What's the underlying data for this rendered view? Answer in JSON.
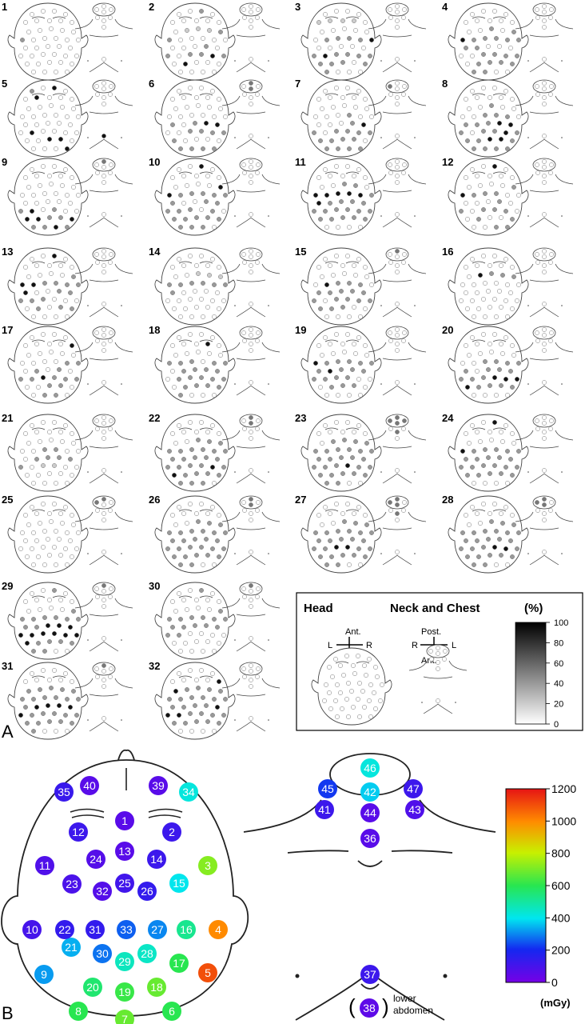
{
  "panel_a": {
    "label": "A",
    "patients": [
      {
        "n": "1",
        "dark": [
          42
        ],
        "mid": [
          15
        ],
        "light": [],
        "neck": [],
        "chest": []
      },
      {
        "n": "2",
        "dark": [
          42,
          30,
          33
        ],
        "mid": [
          3,
          14,
          15,
          29,
          28,
          24,
          26,
          31
        ],
        "light": [
          11,
          12,
          13
        ],
        "neck": [],
        "chest": []
      },
      {
        "n": "3",
        "dark": [
          27,
          20
        ],
        "mid": [
          26,
          28,
          29,
          30,
          31,
          32,
          33,
          34,
          16,
          17,
          18,
          19,
          41,
          36,
          37
        ],
        "light": [
          5,
          6,
          7,
          8
        ],
        "neck": [],
        "chest": []
      },
      {
        "n": "4",
        "dark": [
          15,
          42
        ],
        "mid": [
          12,
          14,
          16,
          17,
          18,
          19,
          20,
          21,
          22,
          28,
          29,
          30,
          31,
          33,
          34,
          35,
          36,
          37,
          38
        ],
        "light": [],
        "neck": [],
        "chest": []
      },
      {
        "n": "5",
        "dark": [
          3,
          6,
          27,
          34,
          40,
          35
        ],
        "mid": [
          1
        ],
        "light": [],
        "neck": [],
        "chest": [
          "c37"
        ]
      },
      {
        "n": "6",
        "dark": [
          24,
          25
        ],
        "mid": [
          21,
          23,
          28,
          29,
          30,
          31,
          32,
          37,
          38,
          39,
          40
        ],
        "light": [],
        "neck": [
          "n46",
          "n42"
        ],
        "chest": []
      },
      {
        "n": "7",
        "dark": [
          41,
          25
        ],
        "mid": [
          18,
          24,
          26,
          28,
          29,
          30,
          31,
          32,
          33,
          34,
          35,
          37,
          38,
          39,
          40
        ],
        "light": [],
        "neck": [
          "n45"
        ],
        "chest": []
      },
      {
        "n": "8",
        "dark": [
          24,
          25,
          30,
          34,
          35
        ],
        "mid": [
          12,
          17,
          18,
          19,
          21,
          22,
          23,
          26,
          28,
          29,
          31,
          32,
          33,
          36,
          37,
          38,
          39,
          40
        ],
        "light": [],
        "neck": [],
        "chest": []
      },
      {
        "n": "9",
        "dark": [
          27,
          32,
          33,
          36,
          39
        ],
        "mid": [
          29,
          34,
          35,
          37,
          38,
          40,
          42,
          26
        ],
        "light": [],
        "neck": [
          "n46"
        ],
        "chest": []
      },
      {
        "n": "10",
        "dark": [
          3,
          14,
          15
        ],
        "mid": [
          16,
          17,
          18,
          19,
          20,
          21,
          24,
          25,
          26,
          27,
          28,
          30,
          32,
          33,
          34,
          35,
          36,
          37,
          38,
          39
        ],
        "light": [],
        "neck": [],
        "chest": []
      },
      {
        "n": "11",
        "dark": [
          15,
          16,
          17,
          18,
          19,
          21
        ],
        "mid": [
          12,
          13,
          20,
          22,
          23,
          24,
          25,
          26,
          27,
          28,
          29,
          30,
          31,
          32,
          33,
          34,
          35,
          36
        ],
        "light": [],
        "neck": [],
        "chest": []
      },
      {
        "n": "12",
        "dark": [
          3,
          15
        ],
        "mid": [
          14,
          16,
          17,
          18,
          24,
          26,
          28,
          29,
          30,
          33,
          36,
          39,
          40
        ],
        "light": [],
        "neck": [],
        "chest": []
      },
      {
        "n": "13",
        "dark": [
          3,
          15,
          16,
          21
        ],
        "mid": [
          14,
          17,
          18,
          19,
          20,
          24,
          25,
          26,
          27,
          28,
          33,
          35,
          36
        ],
        "light": [],
        "neck": [],
        "chest": []
      },
      {
        "n": "14",
        "dark": [],
        "mid": [
          15,
          16,
          17,
          18,
          19,
          20,
          21
        ],
        "light": [
          12,
          13,
          14
        ],
        "neck": [],
        "chest": []
      },
      {
        "n": "15",
        "dark": [
          16
        ],
        "mid": [
          17,
          18,
          19,
          21,
          22,
          23,
          24,
          25,
          26,
          28,
          29,
          30,
          31,
          32,
          33,
          34
        ],
        "light": [],
        "neck": [
          "n46"
        ],
        "chest": []
      },
      {
        "n": "16",
        "dark": [
          11
        ],
        "mid": [
          12,
          13,
          14
        ],
        "light": [],
        "neck": [],
        "chest": []
      },
      {
        "n": "17",
        "dark": [
          9,
          28
        ],
        "mid": [
          19,
          20,
          22,
          24,
          26,
          27,
          29,
          30,
          31,
          34,
          35,
          38,
          39
        ],
        "light": [],
        "neck": [],
        "chest": []
      },
      {
        "n": "18",
        "dark": [
          8
        ],
        "mid": [
          15,
          16,
          17,
          19,
          20,
          22,
          23,
          24,
          25,
          27,
          28,
          29,
          30,
          31,
          33,
          34,
          35,
          36,
          37
        ],
        "light": [],
        "neck": [],
        "chest": []
      },
      {
        "n": "19",
        "dark": [
          22,
          15
        ],
        "mid": [
          16,
          17,
          18,
          19,
          20,
          21,
          23,
          24,
          25,
          26,
          27,
          28,
          29,
          33,
          34,
          35
        ],
        "light": [],
        "neck": [],
        "chest": []
      },
      {
        "n": "20",
        "dark": [
          31,
          32,
          29,
          30
        ],
        "mid": [
          17,
          18,
          19,
          20,
          21,
          23,
          24,
          25,
          26,
          27,
          28,
          33,
          34,
          35,
          36
        ],
        "light": [],
        "neck": [],
        "chest": []
      },
      {
        "n": "21",
        "dark": [],
        "mid": [
          17,
          18,
          22,
          23,
          24,
          25,
          26
        ],
        "light": [
          28,
          29
        ],
        "neck": [],
        "chest": []
      },
      {
        "n": "22",
        "dark": [
          30,
          32
        ],
        "mid": [
          12,
          13,
          14,
          15,
          16,
          17,
          18,
          19,
          20,
          21,
          22,
          23,
          24,
          25,
          26,
          27,
          28,
          29,
          31,
          33,
          34,
          35,
          36,
          37,
          38,
          39
        ],
        "light": [],
        "neck": [
          "n46",
          "n42"
        ],
        "chest": []
      },
      {
        "n": "23",
        "dark": [
          29
        ],
        "mid": [
          11,
          12,
          13,
          14,
          15,
          16,
          17,
          18,
          19,
          20,
          21,
          22,
          23,
          24,
          25,
          26,
          27,
          28,
          30,
          31,
          32,
          33,
          34,
          35,
          36,
          37,
          38
        ],
        "light": [],
        "neck": [
          "n46",
          "n45",
          "n47",
          "n42",
          "n44"
        ],
        "chest": []
      },
      {
        "n": "24",
        "dark": [
          15,
          3
        ],
        "mid": [
          16,
          17,
          18,
          19,
          20,
          21,
          22,
          23,
          24,
          25,
          26,
          27,
          28,
          29,
          30,
          31,
          32,
          33,
          34,
          35,
          36
        ],
        "light": [],
        "neck": [],
        "chest": []
      },
      {
        "n": "25",
        "dark": [],
        "mid": [],
        "light": [],
        "neck": [
          "n46",
          "n45"
        ],
        "chest": []
      },
      {
        "n": "26",
        "dark": [],
        "mid": [
          12,
          13,
          14,
          15,
          16,
          17,
          18,
          19,
          20,
          21,
          22,
          23,
          24,
          25,
          26,
          27,
          28,
          29,
          30,
          31,
          32,
          33,
          34,
          35,
          36,
          37,
          38
        ],
        "light": [],
        "neck": [
          "n46",
          "n42"
        ],
        "chest": []
      },
      {
        "n": "27",
        "dark": [
          28,
          29
        ],
        "mid": [
          12,
          13,
          14,
          15,
          16,
          17,
          18,
          19,
          20,
          21,
          22,
          23,
          24,
          25,
          26,
          27,
          30,
          31,
          32,
          33,
          34,
          35,
          36,
          37,
          38
        ],
        "light": [],
        "neck": [
          "n46",
          "n45",
          "n42",
          "n44"
        ],
        "chest": []
      },
      {
        "n": "28",
        "dark": [
          29,
          30
        ],
        "mid": [
          12,
          13,
          14,
          15,
          16,
          17,
          18,
          19,
          20,
          21,
          22,
          23,
          24,
          25,
          26,
          27,
          28,
          31,
          32,
          33,
          34,
          35,
          36,
          37,
          38
        ],
        "light": [],
        "neck": [
          "n46",
          "n45",
          "n42"
        ],
        "chest": []
      },
      {
        "n": "29",
        "dark": [
          23,
          24,
          25,
          26,
          27,
          28,
          29,
          30,
          31,
          32
        ],
        "mid": [
          15,
          16,
          17,
          18,
          19,
          20,
          21,
          22,
          33,
          34,
          35,
          36,
          37,
          38,
          3,
          14
        ],
        "light": [],
        "neck": [
          "n46"
        ],
        "chest": []
      },
      {
        "n": "30",
        "dark": [],
        "mid": [
          3,
          14,
          15,
          16,
          17,
          18,
          19,
          20,
          21,
          22,
          23,
          24,
          25,
          26,
          27
        ],
        "light": [],
        "neck": [
          "n46"
        ],
        "chest": []
      },
      {
        "n": "31",
        "dark": [
          22,
          23,
          24,
          25,
          26
        ],
        "mid": [
          10,
          11,
          12,
          13,
          14,
          15,
          16,
          17,
          18,
          19,
          20,
          21,
          27,
          28,
          29,
          30,
          31,
          32,
          33,
          34,
          35,
          36,
          37
        ],
        "light": [],
        "neck": [
          "n46"
        ],
        "chest": []
      },
      {
        "n": "32",
        "dark": [
          9,
          10,
          25,
          26,
          27
        ],
        "mid": [
          11,
          12,
          13,
          14,
          15,
          16,
          17,
          18,
          19,
          20,
          21,
          22,
          23,
          24,
          28,
          29,
          30,
          31,
          32,
          33,
          34,
          35,
          36
        ],
        "light": [],
        "neck": [],
        "chest": []
      }
    ],
    "legend": {
      "head_title": "Head",
      "neck_title": "Neck and Chest",
      "unit": "(%)",
      "head_ant": "Ant.",
      "head_post": "Post.",
      "head_l": "L",
      "head_r": "R",
      "neck_post": "Post.",
      "neck_ant": "Ant.",
      "neck_r": "R",
      "neck_l": "L",
      "ticks": [
        "100",
        "80",
        "60",
        "40",
        "20",
        "0"
      ]
    }
  },
  "panel_b": {
    "label": "B",
    "head_points": [
      {
        "id": "1",
        "mGy": 60
      },
      {
        "id": "2",
        "mGy": 120
      },
      {
        "id": "3",
        "mGy": 720
      },
      {
        "id": "4",
        "mGy": 1000
      },
      {
        "id": "5",
        "mGy": 1100
      },
      {
        "id": "6",
        "mGy": 600
      },
      {
        "id": "7",
        "mGy": 680
      },
      {
        "id": "8",
        "mGy": 600
      },
      {
        "id": "9",
        "mGy": 320
      },
      {
        "id": "10",
        "mGy": 100
      },
      {
        "id": "11",
        "mGy": 80
      },
      {
        "id": "12",
        "mGy": 120
      },
      {
        "id": "13",
        "mGy": 60
      },
      {
        "id": "14",
        "mGy": 120
      },
      {
        "id": "15",
        "mGy": 400
      },
      {
        "id": "16",
        "mGy": 520
      },
      {
        "id": "17",
        "mGy": 600
      },
      {
        "id": "18",
        "mGy": 680
      },
      {
        "id": "19",
        "mGy": 620
      },
      {
        "id": "20",
        "mGy": 560
      },
      {
        "id": "21",
        "mGy": 340
      },
      {
        "id": "22",
        "mGy": 140
      },
      {
        "id": "23",
        "mGy": 90
      },
      {
        "id": "24",
        "mGy": 70
      },
      {
        "id": "25",
        "mGy": 110
      },
      {
        "id": "26",
        "mGy": 140
      },
      {
        "id": "27",
        "mGy": 300
      },
      {
        "id": "28",
        "mGy": 450
      },
      {
        "id": "29",
        "mGy": 460
      },
      {
        "id": "30",
        "mGy": 280
      },
      {
        "id": "31",
        "mGy": 140
      },
      {
        "id": "32",
        "mGy": 70
      },
      {
        "id": "33",
        "mGy": 260
      },
      {
        "id": "34",
        "mGy": 420
      },
      {
        "id": "35",
        "mGy": 130
      },
      {
        "id": "39",
        "mGy": 60
      },
      {
        "id": "40",
        "mGy": 60
      }
    ],
    "neck_points": [
      {
        "id": "46",
        "mGy": 420
      },
      {
        "id": "42",
        "mGy": 370
      },
      {
        "id": "45",
        "mGy": 220
      },
      {
        "id": "47",
        "mGy": 120
      },
      {
        "id": "41",
        "mGy": 120
      },
      {
        "id": "43",
        "mGy": 80
      },
      {
        "id": "44",
        "mGy": 60
      },
      {
        "id": "36",
        "mGy": 60
      },
      {
        "id": "37",
        "mGy": 120
      },
      {
        "id": "38",
        "mGy": 50
      }
    ],
    "lower_abdomen_label": [
      "lower",
      "abdomen"
    ],
    "colorbar": {
      "ticks": [
        "1200",
        "1000",
        "800",
        "600",
        "400",
        "200",
        "0"
      ],
      "unit": "(mGy)"
    }
  }
}
